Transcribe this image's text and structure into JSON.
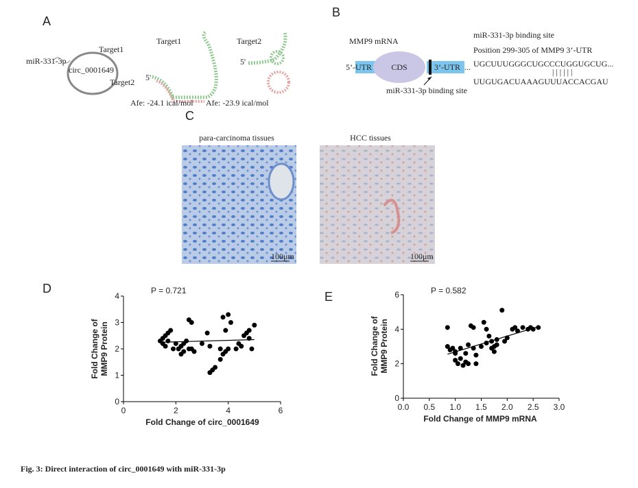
{
  "panels": {
    "a": {
      "letter": "A",
      "mirna": "miR-331-3p",
      "circ": "circ_0001649",
      "target1_label": "Target1",
      "target2_label": "Target2",
      "structure1_title": "Target1",
      "structure2_title": "Target2",
      "five_prime_1": "5'",
      "five_prime_2": "5'",
      "energy1": "Afe: -24.1 ical/mol",
      "energy2": "Afe: -23.9 ical/mol"
    },
    "b": {
      "letter": "B",
      "mrna": "MMP9 mRNA",
      "utr5": "5’-UTR",
      "cds": "CDS",
      "utr3": "3’-UTR",
      "dots": "...",
      "arrow_label": "miR-331-3p binding site",
      "site_title": "miR-331-3p binding site",
      "position": "Position 299-305 of MMP9 3’-UTR",
      "seq1": "UGCUUUGGGCUGCCCUGGUGCUG...",
      "pairs": "| | | | | |",
      "seq2": "UUGUGACUAAAGUUUACCACGAU"
    },
    "c": {
      "letter": "C",
      "left": "para-carcinoma tissues",
      "right": "HCC tissues",
      "scale1": "100μm",
      "scale2": "100μm"
    },
    "d": {
      "letter": "D"
    },
    "e": {
      "letter": "E"
    }
  },
  "caption": "Fig. 3: Direct interaction of circ_0001649 with miR-331-3p",
  "chart_data": [
    {
      "type": "scatter",
      "annotation": "P = 0.721",
      "xlabel": "Fold Change of circ_0001649",
      "ylabel": [
        "Fold Change of",
        "MMP9 Protein"
      ],
      "xlim": [
        0,
        6
      ],
      "xticks": [
        0,
        2,
        4,
        6
      ],
      "ylim": [
        0,
        4
      ],
      "yticks": [
        0,
        1,
        2,
        3,
        4
      ],
      "color": "#000000",
      "x": [
        1.4,
        1.5,
        1.5,
        1.6,
        1.7,
        1.8,
        1.6,
        1.7,
        2.0,
        2.1,
        2.2,
        2.3,
        2.4,
        2.2,
        1.9,
        2.5,
        2.6,
        2.6,
        2.5,
        2.3,
        2.7,
        3.0,
        3.2,
        3.3,
        3.3,
        3.5,
        3.4,
        3.7,
        3.7,
        3.8,
        3.9,
        4.0,
        3.8,
        4.0,
        4.1,
        4.3,
        4.4,
        4.5,
        4.6,
        4.7,
        4.8,
        4.9,
        5.0,
        4.8,
        3.9
      ],
      "values": [
        2.3,
        2.4,
        2.2,
        2.5,
        2.6,
        2.7,
        2.1,
        2.3,
        2.2,
        2.0,
        2.1,
        2.2,
        2.3,
        1.8,
        2.0,
        3.1,
        3.0,
        2.0,
        2.0,
        1.9,
        1.9,
        2.2,
        2.6,
        2.1,
        1.1,
        1.3,
        1.2,
        2.0,
        1.6,
        1.8,
        1.9,
        2.0,
        3.2,
        3.3,
        3.0,
        2.0,
        2.2,
        2.1,
        2.5,
        2.6,
        2.4,
        2.0,
        2.9,
        2.7,
        2.7
      ],
      "fit": {
        "x": [
          1.4,
          5.0
        ],
        "y": [
          2.25,
          2.35
        ]
      }
    },
    {
      "type": "scatter",
      "annotation": "P = 0.582",
      "xlabel": "Fold Change of MMP9 mRNA",
      "ylabel": [
        "Fold Change of",
        "MMP9 Protein"
      ],
      "xlim": [
        0,
        3
      ],
      "xticks": [
        {
          "value": 0,
          "label": "0.0"
        },
        0.5,
        {
          "value": 1,
          "label": "1.0"
        },
        1.5,
        {
          "value": 2,
          "label": "2.0"
        },
        2.5,
        {
          "value": 3,
          "label": "3.0"
        }
      ],
      "ylim": [
        0,
        6
      ],
      "yticks": [
        0,
        2,
        4,
        6
      ],
      "color": "#000000",
      "x": [
        0.85,
        0.85,
        0.9,
        0.95,
        1.0,
        1.0,
        1.05,
        1.1,
        1.1,
        1.15,
        1.2,
        1.2,
        1.25,
        1.25,
        1.3,
        1.35,
        1.35,
        1.4,
        1.4,
        1.5,
        1.55,
        1.6,
        1.6,
        1.65,
        1.7,
        1.75,
        1.75,
        1.8,
        1.8,
        1.9,
        1.95,
        2.0,
        2.1,
        2.15,
        2.2,
        2.3,
        2.4,
        2.45,
        2.5,
        2.6,
        1.7,
        1.0
      ],
      "values": [
        4.1,
        3.0,
        2.8,
        2.9,
        2.6,
        2.2,
        2.0,
        2.9,
        2.3,
        1.9,
        2.6,
        2.1,
        2.0,
        3.1,
        4.2,
        4.1,
        2.9,
        2.0,
        2.5,
        3.0,
        4.4,
        4.0,
        3.2,
        3.6,
        3.3,
        3.0,
        2.7,
        3.1,
        3.4,
        5.1,
        3.3,
        3.5,
        4.0,
        4.1,
        3.9,
        4.1,
        4.0,
        4.1,
        4.0,
        4.1,
        2.9,
        2.7
      ],
      "fit": {
        "x": [
          0.85,
          2.6
        ],
        "y": [
          2.55,
          4.15
        ]
      }
    }
  ]
}
